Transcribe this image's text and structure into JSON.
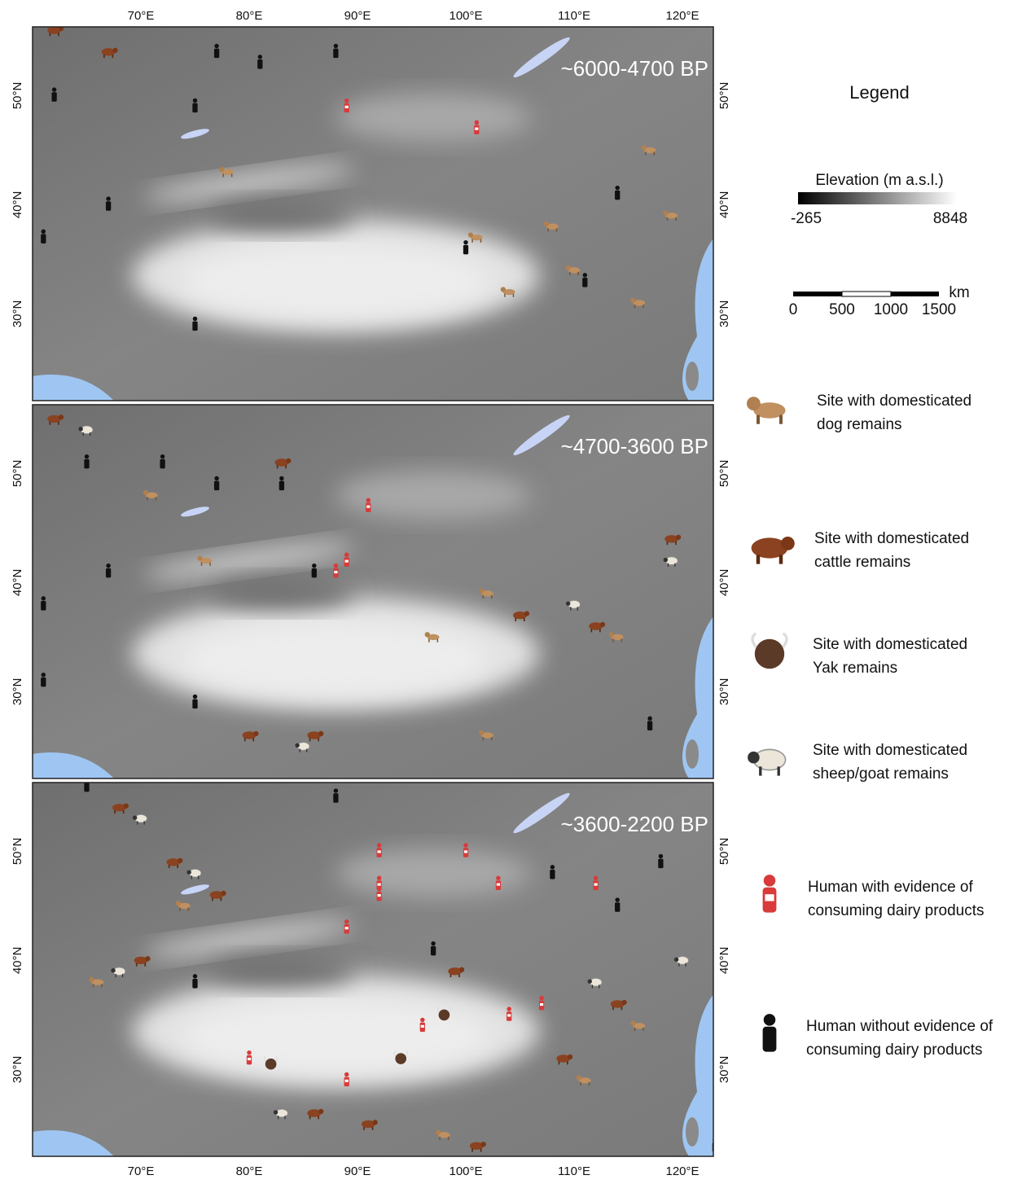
{
  "map": {
    "panels": [
      {
        "period": "~6000-4700 BP"
      },
      {
        "period": "~4700-3600 BP"
      },
      {
        "period": "~3600-2200 BP"
      }
    ],
    "x_ticks": [
      "70°E",
      "80°E",
      "90°E",
      "100°E",
      "110°E",
      "120°E"
    ],
    "y_ticks": [
      "50°N",
      "40°N",
      "30°N"
    ]
  },
  "legend": {
    "title": "Legend",
    "elevation": {
      "title": "Elevation (m a.s.l.)",
      "min": "-265",
      "max": "8848"
    },
    "scale": {
      "unit": "km",
      "labels": [
        "0",
        "500",
        "1000",
        "1500"
      ]
    },
    "items": [
      {
        "lines": [
          "Site with domesticated",
          "dog remains"
        ]
      },
      {
        "lines": [
          "Site with domesticated",
          "cattle remains"
        ]
      },
      {
        "lines": [
          "Site with domesticated",
          "Yak remains"
        ]
      },
      {
        "lines": [
          "Site with domesticated",
          "sheep/goat remains"
        ]
      },
      {
        "lines": [
          "Human with evidence of",
          "consuming dairy products"
        ]
      },
      {
        "lines": [
          "Human without evidence of",
          "consuming dairy products"
        ]
      }
    ]
  }
}
